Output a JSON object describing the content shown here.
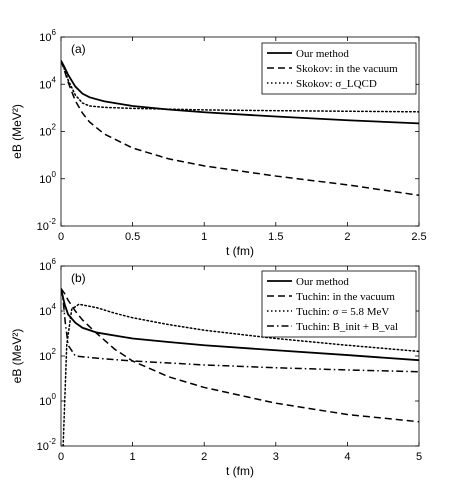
{
  "chart_data": [
    {
      "type": "line",
      "panel_label": "(a)",
      "xlabel": "t (fm)",
      "ylabel": "eB (MeV²)",
      "xlim": [
        0,
        2.5
      ],
      "ylim_log10": [
        -2,
        6
      ],
      "yscale": "log",
      "grid": false,
      "legend_position": "top-right",
      "x_ticks": [
        "0",
        "0.5",
        "1",
        "1.5",
        "2",
        "2.5"
      ],
      "y_ticks": [
        {
          "base": "10",
          "exp": "-2"
        },
        {
          "base": "10",
          "exp": "0"
        },
        {
          "base": "10",
          "exp": "2"
        },
        {
          "base": "10",
          "exp": "4"
        },
        {
          "base": "10",
          "exp": "6"
        }
      ],
      "series": [
        {
          "name": "Our method",
          "style": "solid",
          "x": [
            0,
            0.02,
            0.05,
            0.1,
            0.15,
            0.2,
            0.3,
            0.5,
            0.75,
            1.0,
            1.5,
            2.0,
            2.5
          ],
          "y": [
            100000,
            60000,
            25000,
            8000,
            4000,
            2800,
            1900,
            1200,
            850,
            650,
            430,
            300,
            220
          ]
        },
        {
          "name": "Skokov: in the vacuum",
          "style": "dash",
          "x": [
            0,
            0.02,
            0.05,
            0.1,
            0.15,
            0.2,
            0.3,
            0.5,
            0.75,
            1.0,
            1.5,
            2.0,
            2.5
          ],
          "y": [
            100000,
            45000,
            12000,
            2000,
            600,
            250,
            80,
            20,
            7,
            3.5,
            1.3,
            0.55,
            0.2
          ]
        },
        {
          "name": "Skokov: σ_LQCD",
          "style": "dot",
          "x": [
            0,
            0.02,
            0.05,
            0.1,
            0.15,
            0.2,
            0.3,
            0.5,
            1.0,
            1.5,
            2.0,
            2.5
          ],
          "y": [
            100000,
            50000,
            15000,
            3500,
            1600,
            1200,
            1050,
            950,
            820,
            760,
            720,
            680
          ]
        }
      ],
      "legend_entries": [
        {
          "name": "Our method",
          "style": "solid"
        },
        {
          "name": "Skokov: in the vacuum",
          "style": "dash"
        },
        {
          "name": "Skokov: σ_LQCD",
          "style": "dot"
        }
      ]
    },
    {
      "type": "line",
      "panel_label": "(b)",
      "xlabel": "t (fm)",
      "ylabel": "eB (MeV²)",
      "xlim": [
        0,
        5
      ],
      "ylim_log10": [
        -2,
        6
      ],
      "yscale": "log",
      "grid": false,
      "legend_position": "top-right",
      "x_ticks": [
        "0",
        "1",
        "2",
        "3",
        "4",
        "5"
      ],
      "y_ticks": [
        {
          "base": "10",
          "exp": "-2"
        },
        {
          "base": "10",
          "exp": "0"
        },
        {
          "base": "10",
          "exp": "2"
        },
        {
          "base": "10",
          "exp": "4"
        },
        {
          "base": "10",
          "exp": "6"
        }
      ],
      "series": [
        {
          "name": "Our method",
          "style": "solid",
          "x": [
            0,
            0.05,
            0.1,
            0.2,
            0.3,
            0.5,
            1.0,
            1.5,
            2.0,
            3.0,
            4.0,
            5.0
          ],
          "y": [
            100000,
            20000,
            7000,
            3000,
            1800,
            1100,
            600,
            420,
            300,
            180,
            110,
            65
          ]
        },
        {
          "name": "Tuchin: in the vacuum",
          "style": "dash",
          "x": [
            0,
            0.05,
            0.1,
            0.2,
            0.3,
            0.5,
            0.75,
            1.0,
            1.5,
            2.0,
            3.0,
            4.0,
            5.0
          ],
          "y": [
            100000,
            60000,
            30000,
            10000,
            4000,
            1000,
            200,
            60,
            12,
            4,
            0.8,
            0.25,
            0.12
          ]
        },
        {
          "name": "Tuchin: σ = 5.8 MeV",
          "style": "dot",
          "x": [
            0.03,
            0.08,
            0.15,
            0.25,
            0.5,
            0.75,
            1.0,
            1.5,
            2.0,
            3.0,
            4.0,
            5.0
          ],
          "y": [
            0.01,
            300,
            12000,
            20000,
            14000,
            8000,
            5000,
            2500,
            1400,
            600,
            300,
            160
          ]
        },
        {
          "name": "Tuchin: B_init + B_val",
          "style": "dashdot",
          "x": [
            0,
            0.03,
            0.06,
            0.1,
            0.2,
            0.5,
            1.0,
            2.0,
            3.0,
            4.0,
            5.0
          ],
          "y": [
            100000,
            30000,
            3000,
            300,
            100,
            80,
            60,
            40,
            30,
            24,
            20
          ]
        }
      ],
      "legend_entries": [
        {
          "name": "Our method",
          "style": "solid"
        },
        {
          "name": "Tuchin: in the vacuum",
          "style": "dash"
        },
        {
          "name": "Tuchin: σ = 5.8 MeV",
          "style": "dot"
        },
        {
          "name": "Tuchin: B_init + B_val",
          "style": "dashdot"
        }
      ]
    }
  ]
}
